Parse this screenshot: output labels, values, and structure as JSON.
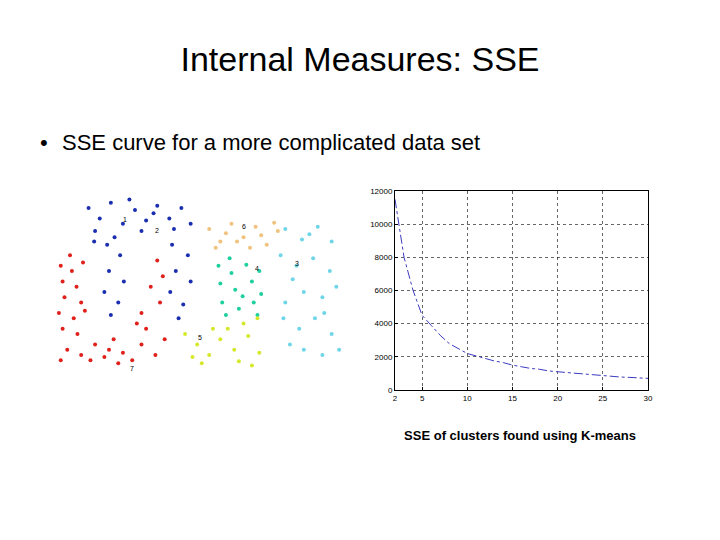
{
  "title": "Internal Measures: SSE",
  "bullets": [
    "SSE curve for a more complicated data set"
  ],
  "caption": "SSE of clusters found using K-means",
  "chart_data": [
    {
      "type": "scatter",
      "tick_labels": false,
      "grid": false,
      "series": [
        {
          "color": "#e0201b",
          "x": [
            8,
            20,
            32,
            10,
            25,
            12,
            30,
            6,
            22,
            34,
            10,
            26,
            15,
            30,
            8,
            45,
            55,
            65,
            75,
            85,
            95,
            110,
            120,
            100,
            95,
            115,
            105,
            118,
            60,
            40,
            70,
            18,
            90,
            112
          ],
          "y": [
            105,
            100,
            108,
            90,
            85,
            75,
            70,
            60,
            55,
            62,
            45,
            40,
            25,
            20,
            15,
            30,
            18,
            35,
            22,
            15,
            30,
            20,
            35,
            45,
            60,
            70,
            85,
            95,
            25,
            15,
            12,
            115,
            50,
            110
          ],
          "labels": [
            {
              "text": "7",
              "x": 85,
              "y": 7
            }
          ]
        },
        {
          "color": "#1a2fb0",
          "x": [
            38,
            50,
            62,
            75,
            88,
            100,
            112,
            125,
            138,
            148,
            45,
            95,
            130,
            58,
            72,
            60,
            76,
            55,
            70,
            62,
            128,
            145,
            132,
            148,
            126,
            140,
            135,
            82,
            108,
            44,
            66
          ],
          "y": [
            160,
            150,
            165,
            145,
            158,
            148,
            162,
            150,
            160,
            145,
            138,
            138,
            140,
            125,
            115,
            100,
            90,
            80,
            70,
            58,
            125,
            115,
            100,
            90,
            80,
            68,
            55,
            168,
            155,
            128,
            132
          ],
          "labels": [
            {
              "text": "1",
              "x": 77,
              "y": 149
            },
            {
              "text": "2",
              "x": 112,
              "y": 139
            }
          ]
        },
        {
          "color": "#f0c27e",
          "x": [
            168,
            180,
            192,
            205,
            218,
            230,
            242,
            175,
            212,
            238,
            186,
            224,
            198
          ],
          "y": [
            140,
            128,
            145,
            132,
            142,
            125,
            138,
            122,
            122,
            146,
            136,
            134,
            128
          ],
          "labels": [
            {
              "text": "6",
              "x": 206,
              "y": 142
            }
          ]
        },
        {
          "color": "#1fcf9f",
          "x": [
            178,
            192,
            208,
            222,
            180,
            196,
            214,
            224,
            182,
            200,
            216,
            186,
            220,
            204,
            190
          ],
          "y": [
            105,
            98,
            106,
            100,
            88,
            82,
            90,
            78,
            70,
            64,
            70,
            58,
            58,
            76,
            112
          ],
          "labels": [
            {
              "text": "4",
              "x": 220,
              "y": 102
            }
          ]
        },
        {
          "color": "#d6e82e",
          "x": [
            142,
            155,
            168,
            180,
            195,
            210,
            222,
            150,
            188,
            205,
            220,
            172,
            160,
            200,
            214
          ],
          "y": [
            40,
            30,
            20,
            35,
            25,
            38,
            22,
            18,
            45,
            50,
            55,
            45,
            12,
            14,
            10
          ],
          "labels": [
            {
              "text": "5",
              "x": 158,
              "y": 37
            }
          ]
        },
        {
          "color": "#6fd6e8",
          "x": [
            250,
            268,
            285,
            300,
            245,
            262,
            280,
            298,
            305,
            290,
            270,
            250,
            248,
            265,
            282,
            300,
            308,
            290,
            270,
            255,
            258,
            292,
            276
          ],
          "y": [
            140,
            130,
            142,
            128,
            115,
            105,
            112,
            100,
            85,
            75,
            80,
            70,
            55,
            45,
            55,
            40,
            25,
            20,
            25,
            30,
            92,
            60,
            135
          ],
          "labels": [
            {
              "text": "3",
              "x": 263,
              "y": 107
            }
          ]
        }
      ]
    },
    {
      "type": "line",
      "color": "#3b3bbf",
      "line_style": "dashdot",
      "grid": true,
      "x": [
        2,
        3,
        4,
        5,
        6,
        7,
        8,
        9,
        10,
        11,
        12,
        13,
        14,
        15,
        16,
        17,
        18,
        19,
        20,
        21,
        22,
        23,
        24,
        25,
        26,
        27,
        28,
        29,
        30
      ],
      "values": [
        11500,
        8000,
        6000,
        4500,
        3900,
        3300,
        2800,
        2500,
        2200,
        2050,
        1900,
        1750,
        1650,
        1500,
        1400,
        1300,
        1250,
        1150,
        1100,
        1050,
        1000,
        950,
        900,
        850,
        820,
        780,
        760,
        720,
        700
      ],
      "xlim": [
        2,
        30
      ],
      "xticks": [
        2,
        5,
        10,
        15,
        20,
        25,
        30
      ],
      "ylim": [
        0,
        12000
      ],
      "yticks": [
        0,
        2000,
        4000,
        6000,
        8000,
        10000,
        12000
      ]
    }
  ]
}
